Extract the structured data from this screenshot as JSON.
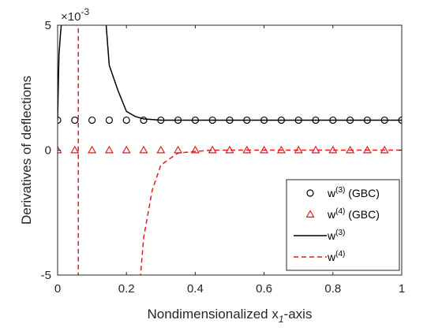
{
  "chart_data": {
    "type": "line",
    "xlabel": "Nondimensionalized x",
    "xlabel_subscript": "1",
    "xlabel_suffix": "-axis",
    "ylabel": "Derivatives of deflections",
    "y_exponent_label": "×10",
    "y_exponent_power": "-3",
    "xlim": [
      0,
      1
    ],
    "ylim": [
      -5,
      5
    ],
    "x_ticks": [
      0,
      0.2,
      0.4,
      0.6,
      0.8,
      1
    ],
    "x_tick_labels": [
      "0",
      "0.2",
      "0.4",
      "0.6",
      "0.8",
      "1"
    ],
    "y_ticks": [
      -5,
      0,
      5
    ],
    "y_tick_labels": [
      "-5",
      "0",
      "5"
    ],
    "legend_position": "bottom-right",
    "series": [
      {
        "name": "w(3) (GBC)",
        "legend_base": "w",
        "legend_sup": "(3)",
        "legend_suffix": " (GBC)",
        "style": "markers",
        "marker": "circle",
        "color": "#000000",
        "x": [
          0,
          0.05,
          0.1,
          0.15,
          0.2,
          0.25,
          0.3,
          0.35,
          0.4,
          0.45,
          0.5,
          0.55,
          0.6,
          0.65,
          0.7,
          0.75,
          0.8,
          0.85,
          0.9,
          0.95,
          1
        ],
        "y": [
          1.2,
          1.2,
          1.2,
          1.2,
          1.2,
          1.2,
          1.2,
          1.2,
          1.2,
          1.2,
          1.2,
          1.2,
          1.2,
          1.2,
          1.2,
          1.2,
          1.2,
          1.2,
          1.2,
          1.2,
          1.2
        ]
      },
      {
        "name": "w(4) (GBC)",
        "legend_base": "w",
        "legend_sup": "(4)",
        "legend_suffix": " (GBC)",
        "style": "markers",
        "marker": "triangle",
        "color": "#e41a1c",
        "x": [
          0,
          0.05,
          0.1,
          0.15,
          0.2,
          0.25,
          0.3,
          0.35,
          0.4,
          0.45,
          0.5,
          0.55,
          0.6,
          0.65,
          0.7,
          0.75,
          0.8,
          0.85,
          0.9,
          0.95
        ],
        "y": [
          0,
          0,
          0,
          0,
          0,
          0,
          0,
          0,
          0,
          0,
          0,
          0,
          0,
          0,
          0,
          0,
          0,
          0,
          0,
          0
        ]
      },
      {
        "name": "w(3)",
        "legend_base": "w",
        "legend_sup": "(3)",
        "legend_suffix": "",
        "style": "solid",
        "color": "#000000",
        "x": [
          0,
          0.004,
          0.008,
          0.012,
          0.14,
          0.15,
          0.175,
          0.2,
          0.225,
          0.25,
          0.3,
          0.4,
          0.5,
          0.6,
          0.7,
          0.8,
          0.9,
          1
        ],
        "y": [
          1.2,
          3.8,
          4.6,
          5.2,
          5.2,
          3.4,
          2.4,
          1.55,
          1.35,
          1.25,
          1.2,
          1.2,
          1.2,
          1.2,
          1.2,
          1.2,
          1.2,
          1.2
        ]
      },
      {
        "name": "w(4)",
        "legend_base": "w",
        "legend_sup": "(4)",
        "legend_suffix": "",
        "style": "dashed",
        "color": "#e41a1c",
        "x": [
          0.06,
          0.06,
          0.24,
          0.25,
          0.275,
          0.3,
          0.325,
          0.35,
          0.4,
          0.45,
          0.5,
          0.6,
          0.7,
          0.8,
          0.9,
          1
        ],
        "y": [
          5.2,
          -5.2,
          -5.2,
          -3.5,
          -1.6,
          -0.6,
          -0.35,
          -0.12,
          -0.05,
          0,
          0,
          0,
          0,
          0,
          0,
          0
        ]
      }
    ]
  }
}
